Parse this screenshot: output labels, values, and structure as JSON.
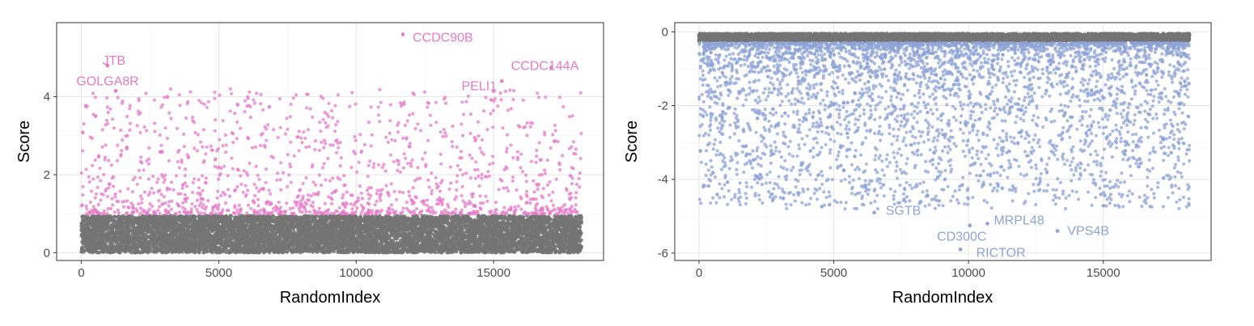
{
  "chart_data": [
    {
      "type": "scatter",
      "title": "",
      "xlabel": "RandomIndex",
      "ylabel": "Score",
      "xlim": [
        -900,
        19000
      ],
      "ylim": [
        -0.2,
        5.9
      ],
      "xticks": [
        0,
        5000,
        10000,
        15000
      ],
      "yticks": [
        0,
        2,
        4
      ],
      "grid": true,
      "colors": {
        "highlight": "#e57bc8",
        "background": "#747474"
      },
      "series": [
        {
          "role": "background",
          "color": "#747474",
          "x_range": [
            0,
            18200
          ],
          "y_range": [
            0,
            0.95
          ],
          "count": 8000
        },
        {
          "role": "highlight",
          "color": "#e57bc8",
          "x_range": [
            0,
            18200
          ],
          "y_range": [
            1.0,
            4.2
          ],
          "count": 1300
        }
      ],
      "labeled_points": [
        {
          "label": "CCDC90B",
          "x": 11700,
          "y": 5.6
        },
        {
          "label": "CCDC144A",
          "x": 17100,
          "y": 4.75
        },
        {
          "label": "JTB",
          "x": 950,
          "y": 4.8
        },
        {
          "label": "GOLGA8R",
          "x": 1250,
          "y": 4.15
        },
        {
          "label": "PELI1",
          "x": 15300,
          "y": 4.4
        }
      ]
    },
    {
      "type": "scatter",
      "title": "",
      "xlabel": "RandomIndex",
      "ylabel": "Score",
      "xlim": [
        -900,
        19000
      ],
      "ylim": [
        -6.2,
        0.25
      ],
      "xticks": [
        0,
        5000,
        10000,
        15000
      ],
      "yticks": [
        0,
        -2,
        -4,
        -6
      ],
      "grid": true,
      "colors": {
        "highlight": "#8ea3d6",
        "background": "#747474"
      },
      "series": [
        {
          "role": "background",
          "color": "#747474",
          "x_range": [
            0,
            18200
          ],
          "y_range": [
            -0.25,
            -0.05
          ],
          "count": 8000
        },
        {
          "role": "highlight",
          "color": "#8ea3d6",
          "x_range": [
            0,
            18200
          ],
          "y_range": [
            -4.8,
            -0.3
          ],
          "count": 4000
        }
      ],
      "labeled_points": [
        {
          "label": "SGTB",
          "x": 6500,
          "y": -4.9
        },
        {
          "label": "CD300C",
          "x": 10050,
          "y": -5.25
        },
        {
          "label": "MRPL48",
          "x": 10700,
          "y": -5.2
        },
        {
          "label": "RICTOR",
          "x": 9700,
          "y": -5.9
        },
        {
          "label": "VPS4B",
          "x": 13300,
          "y": -5.4
        }
      ]
    }
  ]
}
